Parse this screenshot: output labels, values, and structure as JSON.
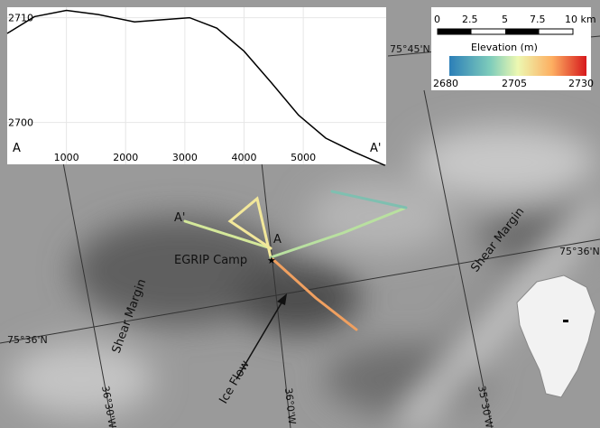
{
  "chart_data": {
    "type": "line",
    "x": [
      0,
      460,
      1000,
      1540,
      2150,
      2620,
      3080,
      3540,
      4000,
      4460,
      4920,
      5380,
      5850,
      6380
    ],
    "values": [
      2708.5,
      2710.1,
      2710.7,
      2710.3,
      2709.6,
      2709.8,
      2710,
      2709,
      2706.8,
      2703.8,
      2700.7,
      2698.5,
      2697.2,
      2695.9
    ],
    "color": "#000000",
    "xlim": [
      0,
      6400
    ],
    "ylim": [
      2696,
      2711
    ],
    "xticks": [
      1000,
      2000,
      3000,
      4000,
      5000
    ],
    "yticks": [
      2700,
      2710
    ],
    "grid": true,
    "annotations": [
      "A",
      "A'"
    ]
  },
  "map": {
    "scale_bar": [
      "0",
      "2.5",
      "5",
      "7.5",
      "10 km"
    ],
    "colorbar": {
      "title": "Elevation (m)",
      "labels": [
        "2680",
        "2705",
        "2730"
      ]
    },
    "latitudes": [
      "75°45'N",
      "75°36'N",
      "75°36'N"
    ],
    "longitudes": [
      "36°30'W",
      "36°0'W",
      "35°30'W"
    ],
    "features": [
      "Shear Margin",
      "Shear Margin",
      "EGRIP Camp",
      "A",
      "A'",
      "Ice Flow"
    ]
  }
}
